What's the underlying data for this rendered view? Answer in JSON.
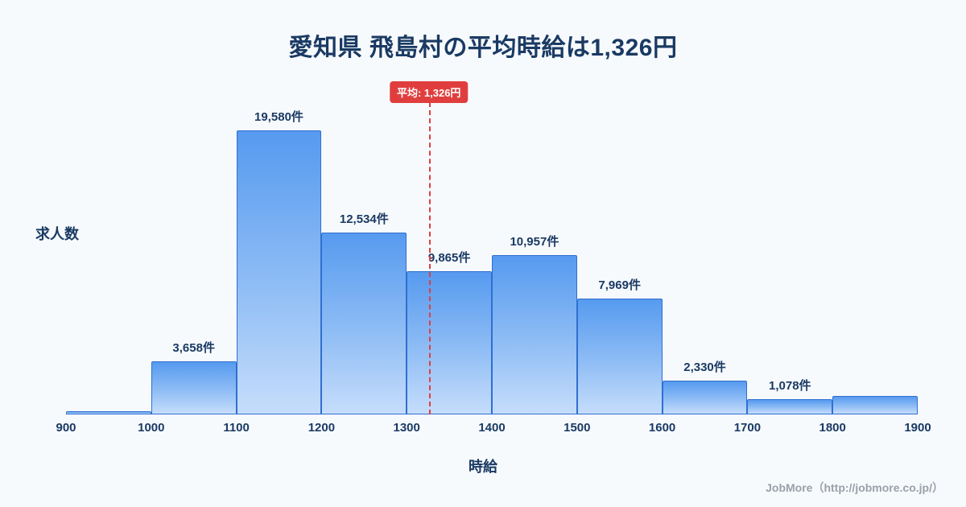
{
  "page": {
    "title": "愛知県 飛島村の平均時給は1,326円",
    "footer_credit": "JobMore（http://jobmore.co.jp/）"
  },
  "chart_data": {
    "type": "bar",
    "title": "愛知県 飛島村の平均時給は1,326円",
    "xlabel": "時給",
    "ylabel": "求人数",
    "xlim": [
      900,
      1900
    ],
    "bin_width": 100,
    "x_ticks": [
      "900",
      "1000",
      "1100",
      "1200",
      "1300",
      "1400",
      "1500",
      "1600",
      "1700",
      "1800",
      "1900"
    ],
    "bars": [
      {
        "bin_start": 900,
        "bin_end": 1000,
        "value": 120,
        "label": ""
      },
      {
        "bin_start": 1000,
        "bin_end": 1100,
        "value": 3658,
        "label": "3,658件"
      },
      {
        "bin_start": 1100,
        "bin_end": 1200,
        "value": 19580,
        "label": "19,580件"
      },
      {
        "bin_start": 1200,
        "bin_end": 1300,
        "value": 12534,
        "label": "12,534件"
      },
      {
        "bin_start": 1300,
        "bin_end": 1400,
        "value": 9865,
        "label": "9,865件"
      },
      {
        "bin_start": 1400,
        "bin_end": 1500,
        "value": 10957,
        "label": "10,957件"
      },
      {
        "bin_start": 1500,
        "bin_end": 1600,
        "value": 7969,
        "label": "7,969件"
      },
      {
        "bin_start": 1600,
        "bin_end": 1700,
        "value": 2330,
        "label": "2,330件"
      },
      {
        "bin_start": 1700,
        "bin_end": 1800,
        "value": 1078,
        "label": "1,078件"
      },
      {
        "bin_start": 1800,
        "bin_end": 1900,
        "value": 1250,
        "label": ""
      }
    ],
    "average_line": {
      "x": 1326,
      "label": "平均: 1,326円"
    },
    "colors": {
      "background": "#f7fafd",
      "bar_top": "#569aef",
      "bar_bottom": "#c6ddfb",
      "bar_border": "#2f6fd0",
      "text": "#1a3a63",
      "average": "#e03e3e",
      "footer": "#9aa0a8"
    },
    "grid": false,
    "legend": false
  }
}
